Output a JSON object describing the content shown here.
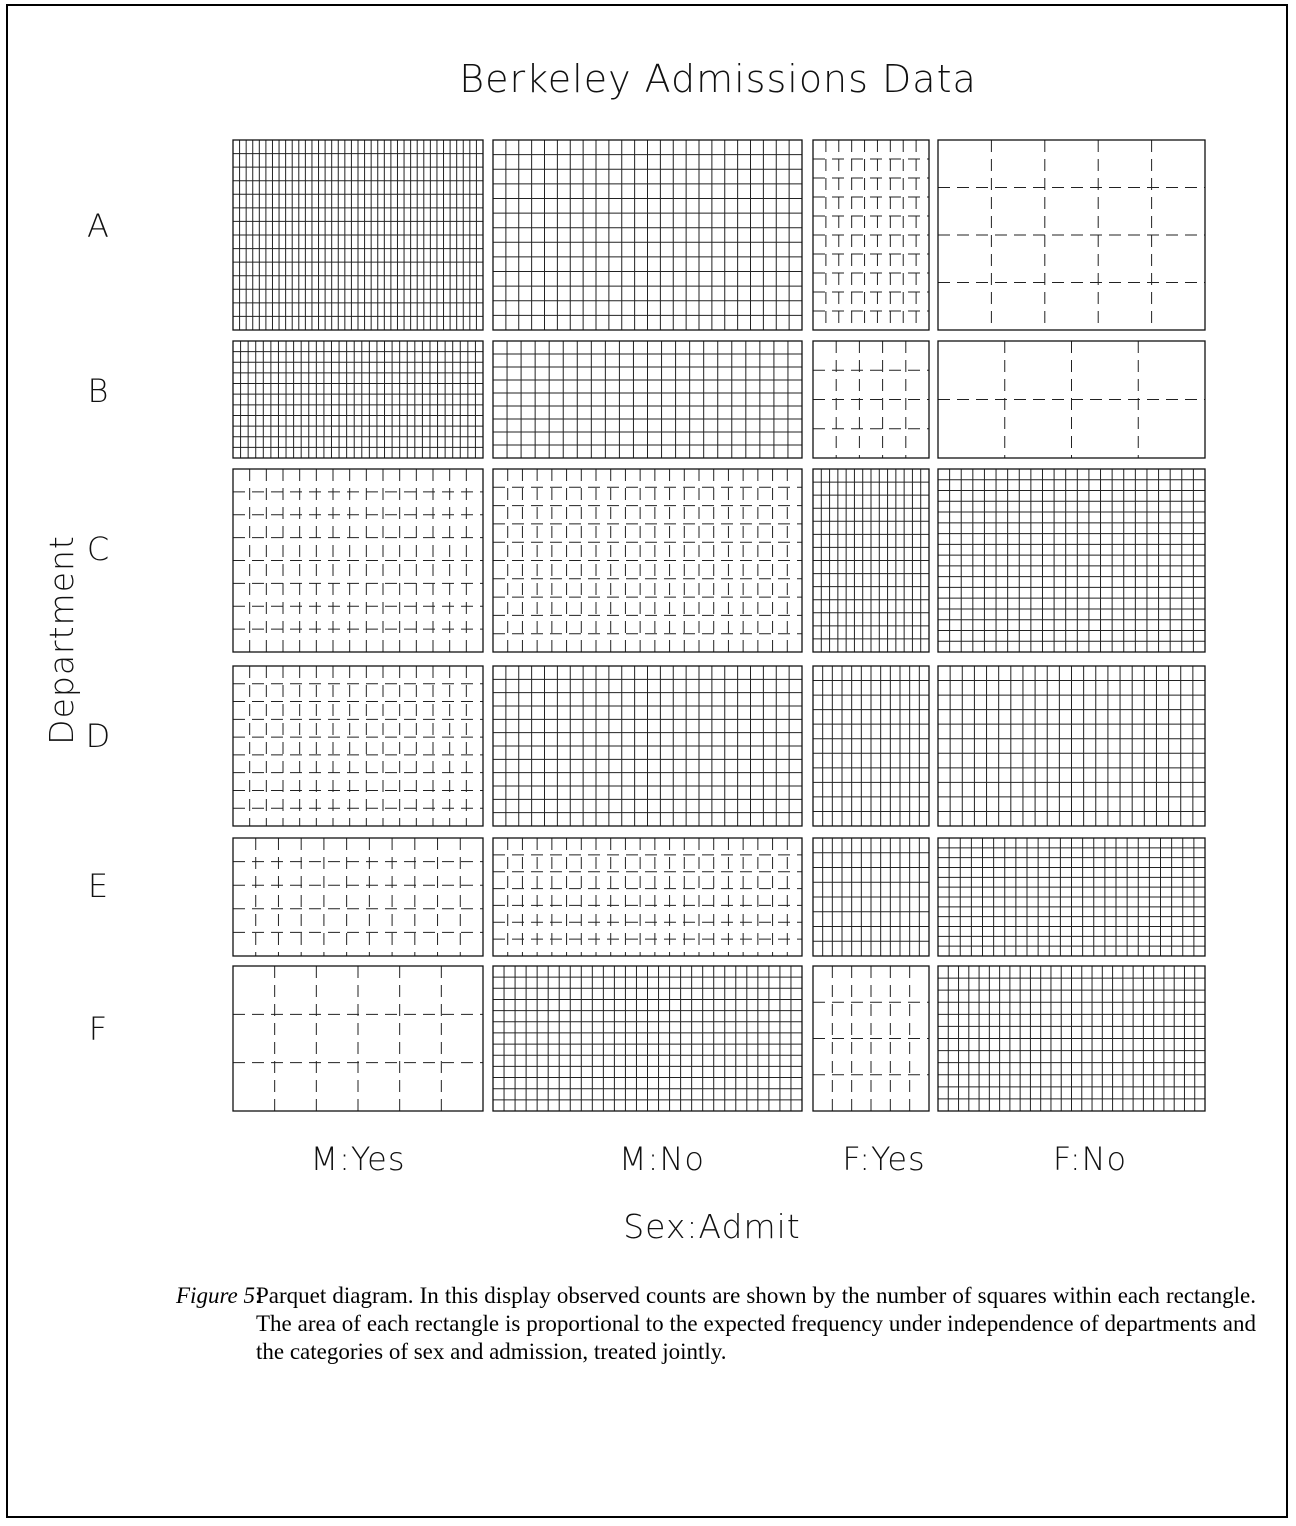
{
  "chart_data": {
    "type": "parquet",
    "title": "Berkeley Admissions Data",
    "xlabel": "Sex:Admit",
    "ylabel": "Department",
    "columns": [
      "M:Yes",
      "M:No",
      "F:Yes",
      "F:No"
    ],
    "rows": [
      "A",
      "B",
      "C",
      "D",
      "E",
      "F"
    ],
    "counts": [
      [
        512,
        313,
        89,
        19
      ],
      [
        353,
        207,
        17,
        8
      ],
      [
        120,
        205,
        202,
        391
      ],
      [
        138,
        279,
        131,
        244
      ],
      [
        53,
        138,
        94,
        299
      ],
      [
        22,
        351,
        24,
        317
      ]
    ],
    "grid": [
      [
        [
          38,
          14,
          "solid"
        ],
        [
          24,
          13,
          "solid"
        ],
        [
          9,
          10,
          "dash"
        ],
        [
          5,
          4,
          "dash"
        ]
      ],
      [
        [
          33,
          11,
          "solid"
        ],
        [
          22,
          9,
          "solid"
        ],
        [
          5,
          4,
          "dash"
        ],
        [
          4,
          2,
          "dash"
        ]
      ],
      [
        [
          15,
          8,
          "dash"
        ],
        [
          21,
          10,
          "dash"
        ],
        [
          14,
          14,
          "solid"
        ],
        [
          23,
          17,
          "solid"
        ]
      ],
      [
        [
          15,
          9,
          "dash"
        ],
        [
          24,
          12,
          "solid"
        ],
        [
          12,
          11,
          "solid"
        ],
        [
          22,
          11,
          "solid"
        ]
      ],
      [
        [
          11,
          5,
          "dash"
        ],
        [
          21,
          7,
          "dash"
        ],
        [
          12,
          8,
          "solid"
        ],
        [
          24,
          12,
          "solid"
        ]
      ],
      [
        [
          6,
          3,
          "dash"
        ],
        [
          28,
          13,
          "solid"
        ],
        [
          6,
          4,
          "dash"
        ],
        [
          26,
          12,
          "solid"
        ]
      ]
    ],
    "encoding": "observed counts shown by number of squares; rectangle area proportional to expected frequency"
  },
  "caption": {
    "label": "Figure 5",
    "text": "Parquet diagram. In this display observed counts are shown by the number of squares within each rectangle. The area of each rectangle is proportional to the expected frequency under independence of departments and the categories of sex and admission, treated jointly."
  }
}
